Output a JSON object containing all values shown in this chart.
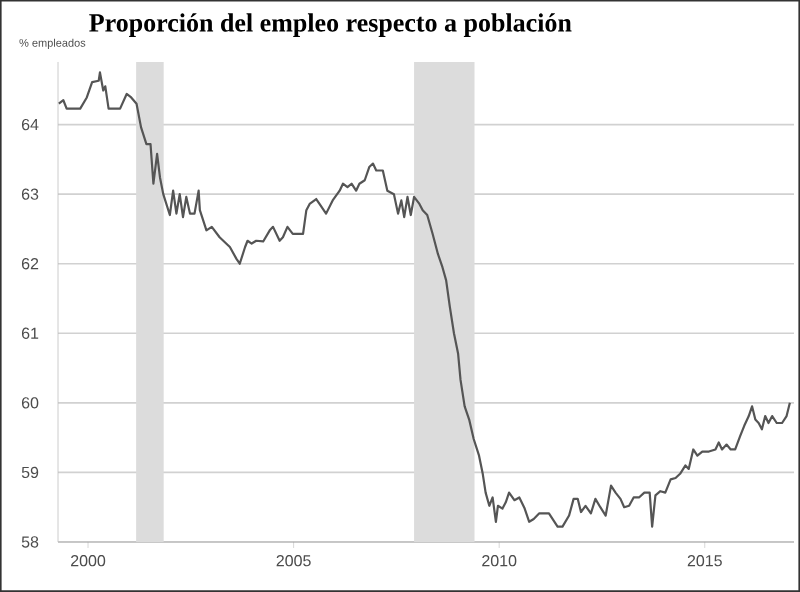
{
  "chart_data": {
    "type": "line",
    "title": "Proporción del empleo respecto a población",
    "ylabel": "% empleados",
    "xlim": [
      1999.27,
      2017.17
    ],
    "ylim": [
      58,
      64.9
    ],
    "xticks": [
      2000,
      2005,
      2010,
      2015
    ],
    "yticks": [
      58,
      59,
      60,
      61,
      62,
      63,
      64
    ],
    "grid": "y",
    "bands": [
      {
        "axis": "x",
        "from": 2001.17,
        "to": 2001.84,
        "color": "#dcdcdc"
      },
      {
        "axis": "x",
        "from": 2007.93,
        "to": 2009.4,
        "color": "#dcdcdc"
      }
    ],
    "series": [
      {
        "color": "#555555",
        "x": [
          1999.29,
          1999.4,
          1999.48,
          1999.81,
          1999.97,
          2000.1,
          2000.26,
          2000.29,
          2000.37,
          2000.42,
          2000.5,
          2000.78,
          2000.94,
          2001.05,
          2001.18,
          2001.29,
          2001.42,
          2001.52,
          2001.59,
          2001.68,
          2001.75,
          2001.83,
          2001.99,
          2002.07,
          2002.15,
          2002.23,
          2002.31,
          2002.39,
          2002.48,
          2002.59,
          2002.69,
          2002.72,
          2002.88,
          2003.01,
          2003.2,
          2003.45,
          2003.61,
          2003.69,
          2003.82,
          2003.88,
          2003.98,
          2004.09,
          2004.26,
          2004.42,
          2004.5,
          2004.66,
          2004.74,
          2004.85,
          2004.98,
          2005.23,
          2005.31,
          2005.39,
          2005.55,
          2005.63,
          2005.79,
          2005.95,
          2006.12,
          2006.2,
          2006.31,
          2006.41,
          2006.52,
          2006.6,
          2006.73,
          2006.84,
          2006.93,
          2007.01,
          2007.17,
          2007.28,
          2007.44,
          2007.54,
          2007.62,
          2007.69,
          2007.77,
          2007.85,
          2007.93,
          2008.06,
          2008.14,
          2008.25,
          2008.38,
          2008.51,
          2008.62,
          2008.71,
          2008.8,
          2008.9,
          2009.0,
          2009.06,
          2009.16,
          2009.27,
          2009.38,
          2009.51,
          2009.6,
          2009.67,
          2009.76,
          2009.84,
          2009.92,
          2009.97,
          2010.08,
          2010.16,
          2010.24,
          2010.37,
          2010.49,
          2010.62,
          2010.73,
          2010.84,
          2010.97,
          2011.21,
          2011.42,
          2011.54,
          2011.7,
          2011.81,
          2011.91,
          2011.99,
          2012.1,
          2012.23,
          2012.34,
          2012.46,
          2012.59,
          2012.72,
          2012.83,
          2012.95,
          2013.04,
          2013.16,
          2013.27,
          2013.4,
          2013.53,
          2013.66,
          2013.72,
          2013.8,
          2013.92,
          2014.04,
          2014.17,
          2014.29,
          2014.4,
          2014.53,
          2014.61,
          2014.72,
          2014.82,
          2014.94,
          2015.1,
          2015.26,
          2015.34,
          2015.42,
          2015.53,
          2015.63,
          2015.74,
          2015.86,
          2015.96,
          2016.07,
          2016.15,
          2016.23,
          2016.31,
          2016.39,
          2016.47,
          2016.55,
          2016.64,
          2016.75,
          2016.88,
          2016.99,
          2017.07
        ],
        "values": [
          64.3,
          64.35,
          64.23,
          64.23,
          64.39,
          64.61,
          64.63,
          64.75,
          64.49,
          64.55,
          64.23,
          64.23,
          64.44,
          64.39,
          64.3,
          63.96,
          63.72,
          63.72,
          63.15,
          63.58,
          63.24,
          63.0,
          62.7,
          63.05,
          62.72,
          63.0,
          62.67,
          62.96,
          62.72,
          62.72,
          63.05,
          62.77,
          62.48,
          62.53,
          62.38,
          62.24,
          62.07,
          62.0,
          62.24,
          62.33,
          62.29,
          62.33,
          62.32,
          62.48,
          62.53,
          62.33,
          62.38,
          62.53,
          62.43,
          62.43,
          62.77,
          62.86,
          62.93,
          62.86,
          62.72,
          62.91,
          63.05,
          63.15,
          63.1,
          63.15,
          63.05,
          63.15,
          63.2,
          63.39,
          63.44,
          63.34,
          63.34,
          63.05,
          63.0,
          62.72,
          62.91,
          62.67,
          62.96,
          62.7,
          62.96,
          62.86,
          62.77,
          62.7,
          62.43,
          62.14,
          61.95,
          61.76,
          61.38,
          61.0,
          60.71,
          60.33,
          59.95,
          59.76,
          59.48,
          59.24,
          58.98,
          58.71,
          58.52,
          58.64,
          58.29,
          58.52,
          58.48,
          58.57,
          58.71,
          58.6,
          58.64,
          58.48,
          58.29,
          58.33,
          58.41,
          58.41,
          58.22,
          58.22,
          58.38,
          58.62,
          58.62,
          58.43,
          58.52,
          58.41,
          58.62,
          58.5,
          58.38,
          58.81,
          58.71,
          58.62,
          58.5,
          58.52,
          58.64,
          58.64,
          58.71,
          58.71,
          58.22,
          58.67,
          58.73,
          58.71,
          58.9,
          58.92,
          58.98,
          59.1,
          59.05,
          59.33,
          59.24,
          59.3,
          59.3,
          59.33,
          59.43,
          59.33,
          59.4,
          59.33,
          59.33,
          59.52,
          59.67,
          59.81,
          59.95,
          59.76,
          59.71,
          59.62,
          59.81,
          59.71,
          59.81,
          59.71,
          59.71,
          59.81,
          60.0
        ]
      }
    ]
  }
}
